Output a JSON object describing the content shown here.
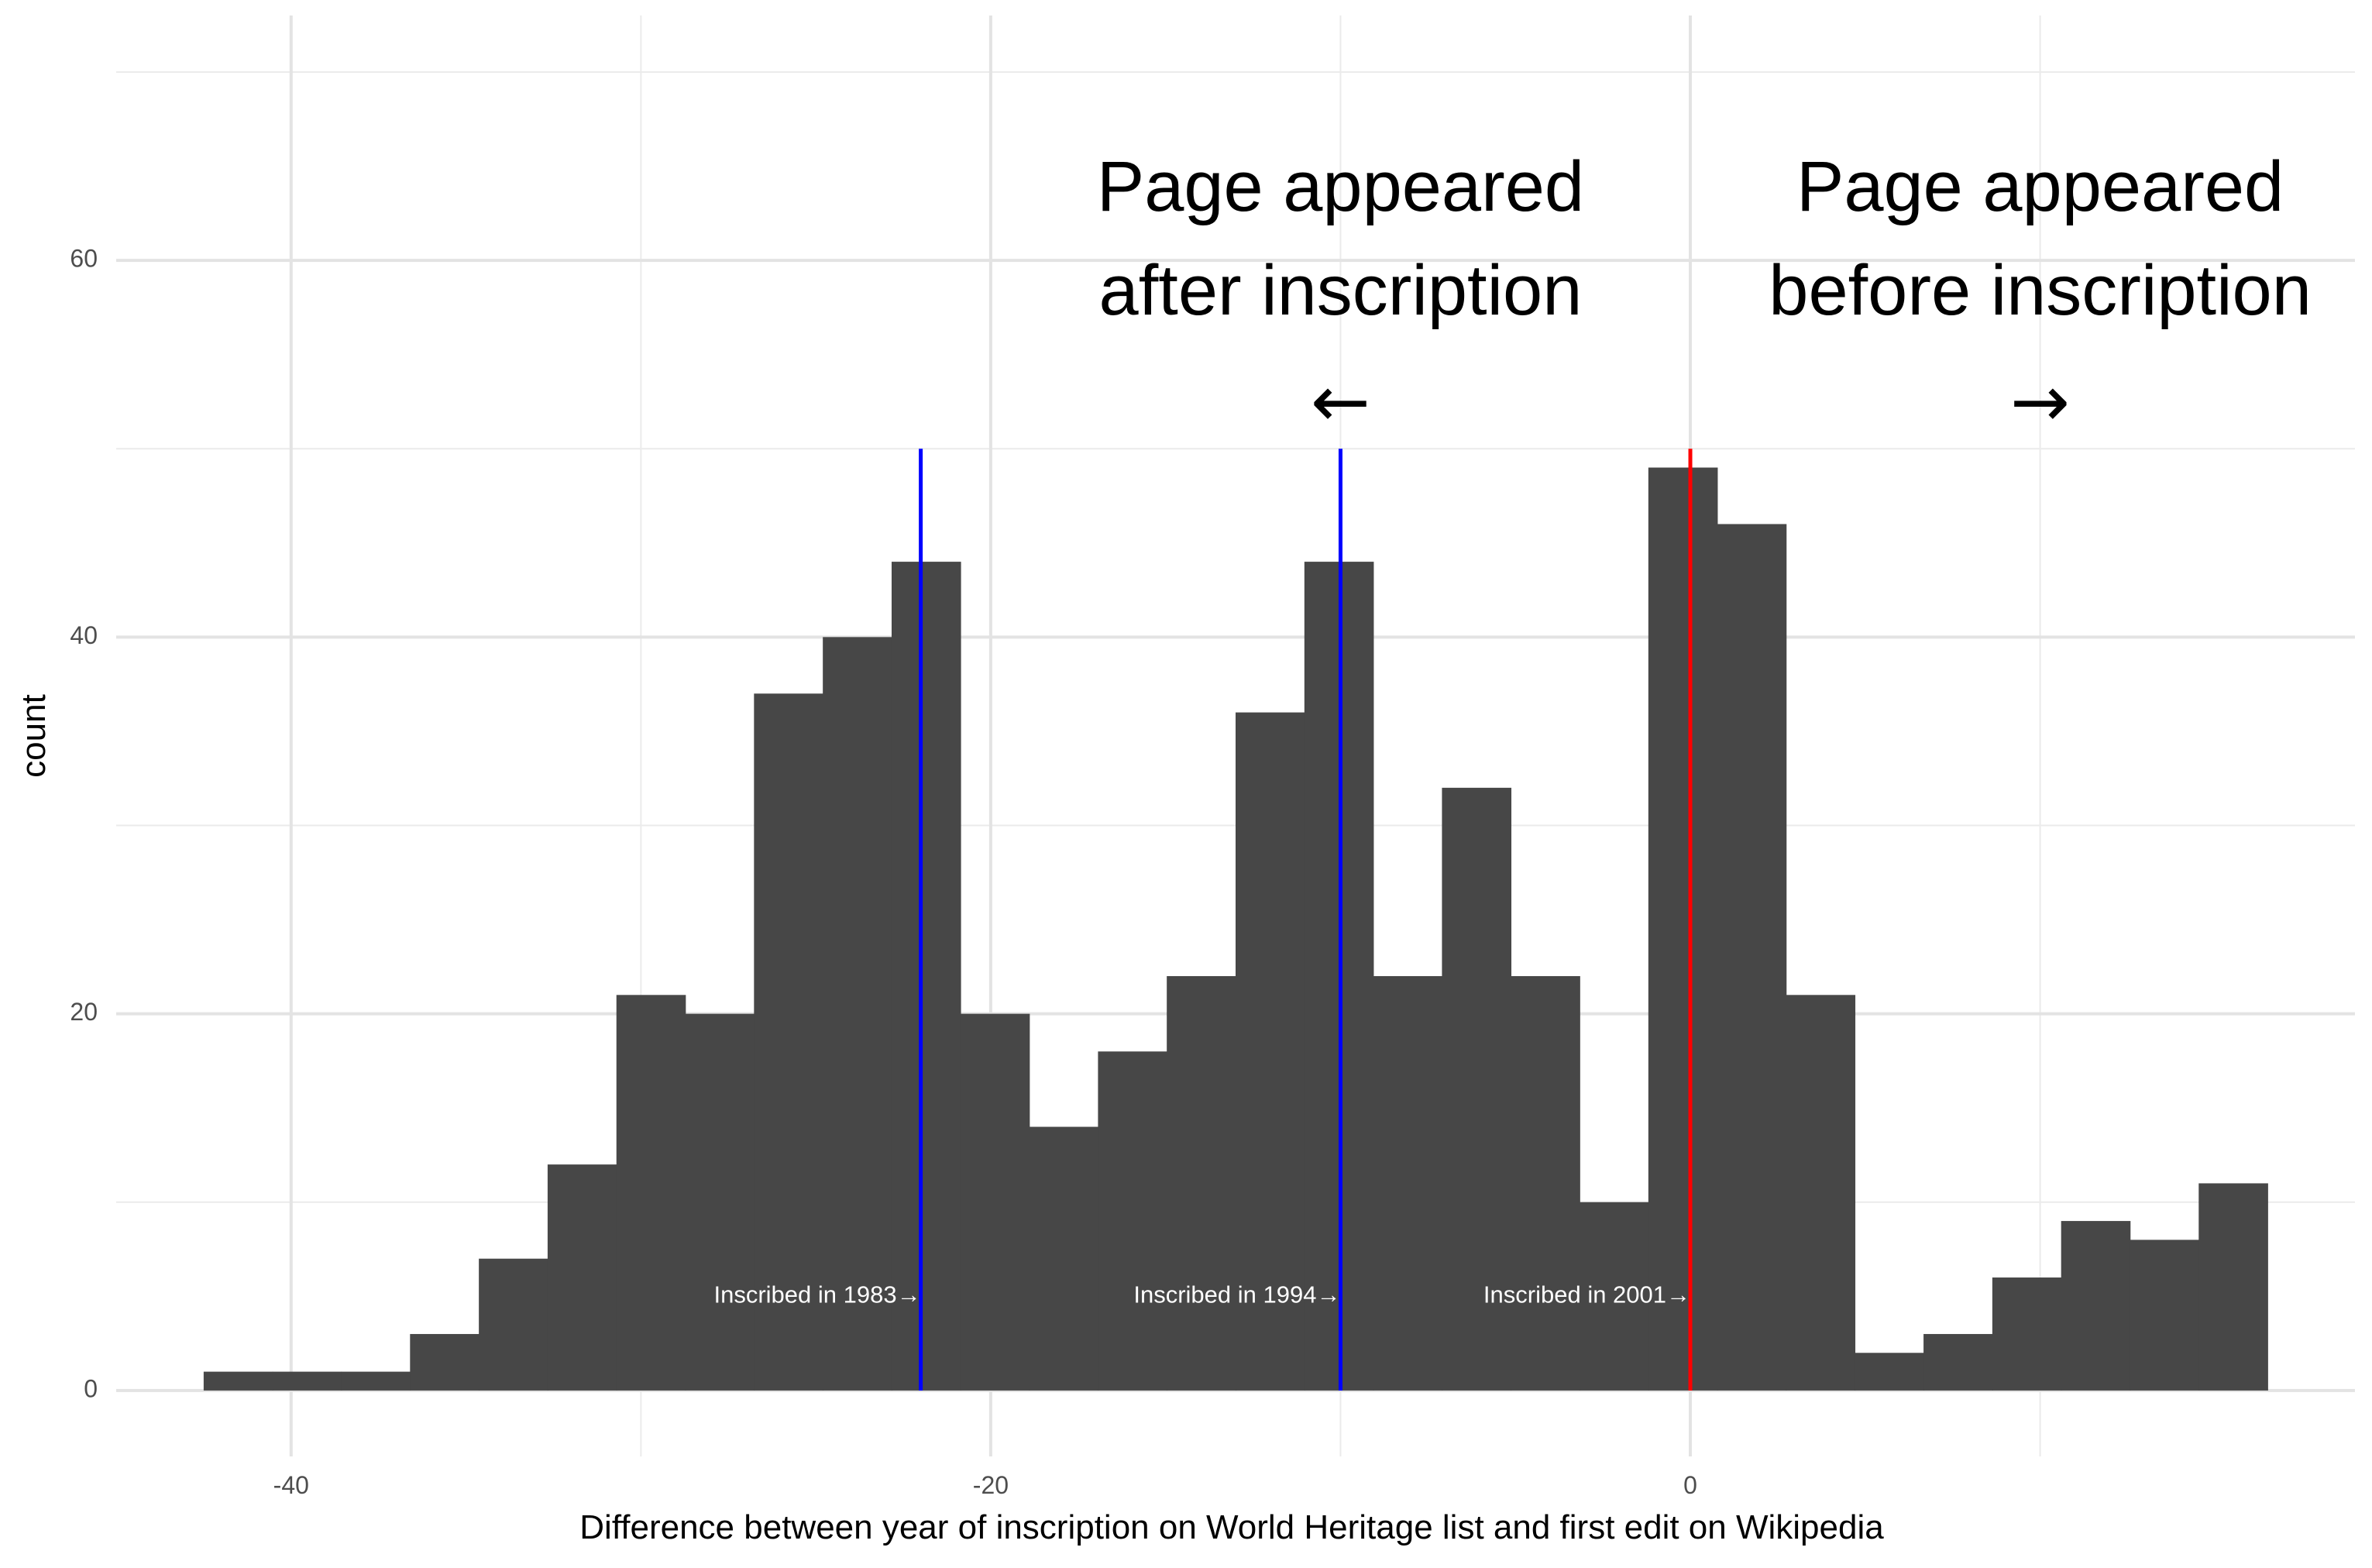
{
  "chart_data": {
    "type": "bar",
    "xlabel": "Difference between year of inscription on World Heritage list and first edit on Wikipedia",
    "ylabel": "count",
    "xlim": [
      -45,
      19
    ],
    "ylim": [
      -3.5,
      73
    ],
    "x_ticks": [
      -40,
      -20,
      0
    ],
    "y_ticks": [
      0,
      20,
      40,
      60
    ],
    "grid": true,
    "bar_color": "#474747",
    "bin_width": 1.9667,
    "bins": [
      {
        "x0": -42.5,
        "count": 1
      },
      {
        "x0": -40.533,
        "count": 1
      },
      {
        "x0": -38.567,
        "count": 1
      },
      {
        "x0": -36.6,
        "count": 3
      },
      {
        "x0": -34.633,
        "count": 7
      },
      {
        "x0": -32.667,
        "count": 12
      },
      {
        "x0": -30.7,
        "count": 21
      },
      {
        "x0": -28.733,
        "count": 20
      },
      {
        "x0": -26.767,
        "count": 37
      },
      {
        "x0": -24.8,
        "count": 40
      },
      {
        "x0": -22.833,
        "count": 44
      },
      {
        "x0": -20.867,
        "count": 20
      },
      {
        "x0": -18.9,
        "count": 14
      },
      {
        "x0": -16.933,
        "count": 18
      },
      {
        "x0": -14.967,
        "count": 22
      },
      {
        "x0": -13.0,
        "count": 36
      },
      {
        "x0": -11.033,
        "count": 44
      },
      {
        "x0": -9.067,
        "count": 22
      },
      {
        "x0": -7.1,
        "count": 32
      },
      {
        "x0": -5.133,
        "count": 22
      },
      {
        "x0": -3.167,
        "count": 10
      },
      {
        "x0": -1.2,
        "count": 49
      },
      {
        "x0": 0.767,
        "count": 46
      },
      {
        "x0": 2.733,
        "count": 21
      },
      {
        "x0": 4.7,
        "count": 2
      },
      {
        "x0": 6.667,
        "count": 3
      },
      {
        "x0": 8.633,
        "count": 6
      },
      {
        "x0": 10.6,
        "count": 9
      },
      {
        "x0": 12.567,
        "count": 8
      },
      {
        "x0": 14.533,
        "count": 11
      }
    ],
    "vlines": [
      {
        "x": -22,
        "y_top": 50,
        "color": "#0000ff",
        "label": "Inscribed in 1983→"
      },
      {
        "x": -10,
        "y_top": 50,
        "color": "#0000ff",
        "label": "Inscribed in 1994→"
      },
      {
        "x": 0,
        "y_top": 50,
        "color": "#ff0000",
        "label": "Inscribed in 2001→"
      }
    ],
    "vline_label_y": 5,
    "annotations": [
      {
        "lines": [
          "Page appeared",
          "after inscription"
        ],
        "arrow": "←",
        "x": -10
      },
      {
        "lines": [
          "Page appeared",
          "before inscription"
        ],
        "arrow": "→",
        "x": 10
      }
    ]
  }
}
